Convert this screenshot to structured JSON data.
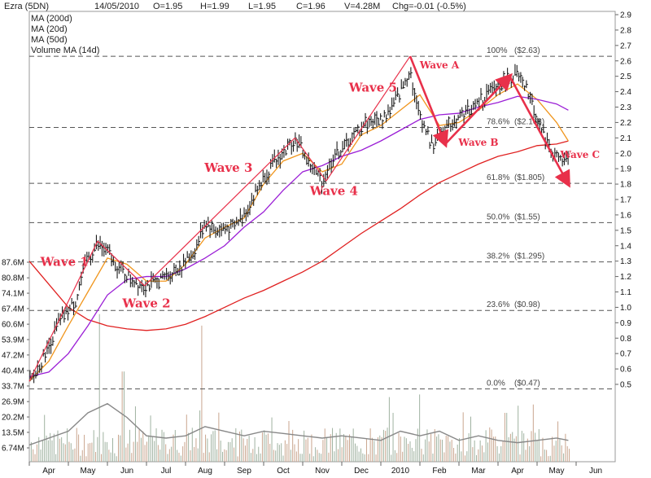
{
  "header": {
    "symbol": "Ezra (5DN)",
    "date": "14/05/2010",
    "open": "O=1.95",
    "high": "H=1.99",
    "low": "L=1.95",
    "close": "C=1.96",
    "volume": "V=4.28M",
    "change": "Chg=-0.01 (-0.5%)"
  },
  "legend": [
    {
      "label": "MA (200d)",
      "color": "#e02020"
    },
    {
      "label": "MA (20d)",
      "color": "#f0961e"
    },
    {
      "label": "MA (50d)",
      "color": "#9b1fd6"
    },
    {
      "label": "Volume MA (14d)",
      "color": "#777777"
    }
  ],
  "colors": {
    "price_bars": "#1a1a1a",
    "ma200": "#e02020",
    "ma20": "#f0961e",
    "ma50": "#9b1fd6",
    "volume_ma": "#888888",
    "volume_bars": "#c8b8a0",
    "annotation": "#e8304a",
    "fib_line": "#555555"
  },
  "chart_data": {
    "type": "line",
    "price_axis": {
      "ylim": [
        0.45,
        2.9
      ],
      "ticks": [
        "2.9",
        "2.8",
        "2.7",
        "2.6",
        "2.5",
        "2.4",
        "2.3",
        "2.2",
        "2.1",
        "2.0",
        "1.9",
        "1.8",
        "1.7",
        "1.6",
        "1.5",
        "1.4",
        "1.3",
        "1.2",
        "1.1",
        "1.0",
        "0.9",
        "0.8",
        "0.7",
        "0.6",
        "0.5"
      ],
      "tick_values": [
        2.9,
        2.8,
        2.7,
        2.6,
        2.5,
        2.4,
        2.3,
        2.2,
        2.1,
        2.0,
        1.9,
        1.8,
        1.7,
        1.6,
        1.5,
        1.4,
        1.3,
        1.2,
        1.1,
        1.0,
        0.9,
        0.8,
        0.7,
        0.6,
        0.5
      ]
    },
    "volume_axis": {
      "ticks": [
        "87.6M",
        "80.8M",
        "74.1M",
        "67.4M",
        "60.6M",
        "53.9M",
        "47.2M",
        "40.4M",
        "33.7M",
        "26.9M",
        "20.2M",
        "13.5M",
        "6.74M"
      ],
      "tick_values": [
        87.6,
        80.8,
        74.1,
        67.4,
        60.6,
        53.9,
        47.2,
        40.4,
        33.7,
        26.9,
        20.2,
        13.5,
        6.74
      ],
      "unit": "M"
    },
    "x_months": [
      {
        "label": "Apr",
        "t": 0.5
      },
      {
        "label": "May",
        "t": 1.5
      },
      {
        "label": "Jun",
        "t": 2.5
      },
      {
        "label": "Jul",
        "t": 3.5
      },
      {
        "label": "Aug",
        "t": 4.5
      },
      {
        "label": "Sep",
        "t": 5.5
      },
      {
        "label": "Oct",
        "t": 6.5
      },
      {
        "label": "Nov",
        "t": 7.5
      },
      {
        "label": "Dec",
        "t": 8.5
      },
      {
        "label": "2010",
        "t": 9.5
      },
      {
        "label": "Feb",
        "t": 10.5
      },
      {
        "label": "Mar",
        "t": 11.5
      },
      {
        "label": "Apr",
        "t": 12.5
      },
      {
        "label": "May",
        "t": 13.5
      },
      {
        "label": "Jun",
        "t": 14.5
      }
    ],
    "price_path": [
      [
        0.0,
        0.5
      ],
      [
        0.25,
        0.62
      ],
      [
        0.5,
        0.75
      ],
      [
        0.75,
        0.9
      ],
      [
        1.0,
        0.98
      ],
      [
        1.2,
        1.05
      ],
      [
        1.45,
        1.3
      ],
      [
        1.75,
        1.41
      ],
      [
        2.0,
        1.36
      ],
      [
        2.3,
        1.25
      ],
      [
        2.6,
        1.18
      ],
      [
        2.9,
        1.15
      ],
      [
        3.2,
        1.15
      ],
      [
        3.45,
        1.2
      ],
      [
        3.8,
        1.25
      ],
      [
        4.2,
        1.35
      ],
      [
        4.5,
        1.55
      ],
      [
        4.8,
        1.5
      ],
      [
        5.2,
        1.52
      ],
      [
        5.5,
        1.6
      ],
      [
        5.8,
        1.75
      ],
      [
        6.0,
        1.85
      ],
      [
        6.2,
        1.92
      ],
      [
        6.5,
        2.0
      ],
      [
        6.8,
        2.1
      ],
      [
        7.2,
        1.92
      ],
      [
        7.5,
        1.82
      ],
      [
        7.8,
        1.98
      ],
      [
        8.2,
        2.08
      ],
      [
        8.6,
        2.2
      ],
      [
        9.0,
        2.22
      ],
      [
        9.3,
        2.3
      ],
      [
        9.6,
        2.45
      ],
      [
        9.75,
        2.55
      ],
      [
        9.9,
        2.32
      ],
      [
        10.3,
        2.05
      ],
      [
        10.6,
        2.15
      ],
      [
        11.0,
        2.25
      ],
      [
        11.4,
        2.3
      ],
      [
        11.8,
        2.4
      ],
      [
        12.2,
        2.48
      ],
      [
        12.5,
        2.5
      ],
      [
        12.8,
        2.38
      ],
      [
        13.1,
        2.15
      ],
      [
        13.4,
        2.0
      ],
      [
        13.6,
        1.95
      ],
      [
        13.8,
        1.95
      ]
    ],
    "series": [
      {
        "name": "MA (200d)",
        "color": "#e02020",
        "points": [
          [
            0.0,
            1.3
          ],
          [
            0.5,
            1.15
          ],
          [
            1.0,
            1.0
          ],
          [
            1.5,
            0.92
          ],
          [
            2.0,
            0.88
          ],
          [
            2.5,
            0.86
          ],
          [
            3.0,
            0.85
          ],
          [
            3.5,
            0.86
          ],
          [
            4.0,
            0.89
          ],
          [
            4.5,
            0.94
          ],
          [
            5.0,
            1.0
          ],
          [
            5.5,
            1.06
          ],
          [
            6.0,
            1.11
          ],
          [
            6.5,
            1.17
          ],
          [
            7.0,
            1.23
          ],
          [
            7.5,
            1.3
          ],
          [
            8.0,
            1.39
          ],
          [
            8.5,
            1.48
          ],
          [
            9.0,
            1.56
          ],
          [
            9.5,
            1.64
          ],
          [
            10.0,
            1.73
          ],
          [
            10.5,
            1.81
          ],
          [
            11.0,
            1.87
          ],
          [
            11.5,
            1.93
          ],
          [
            12.0,
            1.98
          ],
          [
            12.5,
            2.01
          ],
          [
            13.0,
            2.05
          ],
          [
            13.5,
            2.06
          ],
          [
            13.8,
            2.08
          ]
        ]
      },
      {
        "name": "MA (20d)",
        "color": "#f0961e",
        "points": [
          [
            0.0,
            0.52
          ],
          [
            0.5,
            0.65
          ],
          [
            1.0,
            0.88
          ],
          [
            1.5,
            1.1
          ],
          [
            2.0,
            1.32
          ],
          [
            2.5,
            1.28
          ],
          [
            3.0,
            1.17
          ],
          [
            3.5,
            1.17
          ],
          [
            4.0,
            1.28
          ],
          [
            4.5,
            1.45
          ],
          [
            5.0,
            1.52
          ],
          [
            5.5,
            1.58
          ],
          [
            6.0,
            1.8
          ],
          [
            6.5,
            1.95
          ],
          [
            7.0,
            2.0
          ],
          [
            7.5,
            1.88
          ],
          [
            8.0,
            1.93
          ],
          [
            8.5,
            2.12
          ],
          [
            9.0,
            2.18
          ],
          [
            9.5,
            2.28
          ],
          [
            10.0,
            2.38
          ],
          [
            10.5,
            2.18
          ],
          [
            11.0,
            2.2
          ],
          [
            11.5,
            2.28
          ],
          [
            12.0,
            2.38
          ],
          [
            12.5,
            2.45
          ],
          [
            13.0,
            2.35
          ],
          [
            13.5,
            2.2
          ],
          [
            13.8,
            2.08
          ]
        ]
      },
      {
        "name": "MA (50d)",
        "color": "#9b1fd6",
        "points": [
          [
            0.0,
            0.55
          ],
          [
            0.5,
            0.58
          ],
          [
            1.0,
            0.7
          ],
          [
            1.5,
            0.88
          ],
          [
            2.0,
            1.08
          ],
          [
            2.5,
            1.18
          ],
          [
            3.0,
            1.2
          ],
          [
            3.5,
            1.2
          ],
          [
            4.0,
            1.25
          ],
          [
            4.5,
            1.32
          ],
          [
            5.0,
            1.4
          ],
          [
            5.5,
            1.52
          ],
          [
            6.0,
            1.62
          ],
          [
            6.5,
            1.76
          ],
          [
            7.0,
            1.88
          ],
          [
            7.5,
            1.92
          ],
          [
            8.0,
            1.98
          ],
          [
            8.5,
            2.02
          ],
          [
            9.0,
            2.08
          ],
          [
            9.5,
            2.15
          ],
          [
            10.0,
            2.22
          ],
          [
            10.5,
            2.25
          ],
          [
            11.0,
            2.26
          ],
          [
            11.5,
            2.3
          ],
          [
            12.0,
            2.33
          ],
          [
            12.5,
            2.37
          ],
          [
            13.0,
            2.35
          ],
          [
            13.5,
            2.32
          ],
          [
            13.8,
            2.28
          ]
        ]
      },
      {
        "name": "Volume MA (14d)",
        "color": "#888888",
        "points": [
          [
            0.0,
            8
          ],
          [
            1.0,
            14
          ],
          [
            1.5,
            22
          ],
          [
            2.0,
            26
          ],
          [
            2.5,
            20
          ],
          [
            3.0,
            12
          ],
          [
            3.5,
            11
          ],
          [
            4.0,
            12
          ],
          [
            4.5,
            16
          ],
          [
            5.0,
            14
          ],
          [
            5.5,
            12
          ],
          [
            6.0,
            14
          ],
          [
            6.5,
            13
          ],
          [
            7.0,
            12
          ],
          [
            7.5,
            11
          ],
          [
            8.0,
            12
          ],
          [
            8.5,
            11
          ],
          [
            9.0,
            10
          ],
          [
            9.5,
            14
          ],
          [
            10.0,
            12
          ],
          [
            10.5,
            14
          ],
          [
            11.0,
            10
          ],
          [
            11.5,
            12
          ],
          [
            12.0,
            10
          ],
          [
            12.5,
            9
          ],
          [
            13.0,
            10
          ],
          [
            13.5,
            11
          ],
          [
            13.8,
            10
          ]
        ]
      }
    ],
    "fibonacci": [
      {
        "label": "100%",
        "value_label": "($2.63)",
        "value": 2.63
      },
      {
        "label": "78.6%",
        "value_label": "($2.168)",
        "value": 2.168
      },
      {
        "label": "61.8%",
        "value_label": "($1.805)",
        "value": 1.805
      },
      {
        "label": "50.0%",
        "value_label": "($1.55)",
        "value": 1.55
      },
      {
        "label": "38.2%",
        "value_label": "($1.295)",
        "value": 1.295
      },
      {
        "label": "23.6%",
        "value_label": "($0.98)",
        "value": 0.98
      },
      {
        "label": "0.0%",
        "value_label": "($0.47)",
        "value": 0.47
      }
    ],
    "waves": [
      {
        "label": "Wave 1",
        "t": 0.9,
        "y": 1.27,
        "size": 15
      },
      {
        "label": "Wave 2",
        "t": 3.0,
        "y": 1.0,
        "size": 15
      },
      {
        "label": "Wave 3",
        "t": 5.1,
        "y": 1.88,
        "size": 15
      },
      {
        "label": "Wave 4",
        "t": 7.8,
        "y": 1.73,
        "size": 15
      },
      {
        "label": "Wave 5",
        "t": 8.8,
        "y": 2.4,
        "size": 15
      },
      {
        "label": "Wave A",
        "t": 10.5,
        "y": 2.55,
        "size": 12
      },
      {
        "label": "Wave B",
        "t": 11.5,
        "y": 2.05,
        "size": 12
      },
      {
        "label": "Wave C",
        "t": 14.1,
        "y": 1.97,
        "size": 12
      }
    ],
    "wave_lines": [
      [
        [
          0.0,
          0.52
        ],
        [
          1.75,
          1.43
        ]
      ],
      [
        [
          1.75,
          1.43
        ],
        [
          2.95,
          1.14
        ]
      ],
      [
        [
          2.95,
          1.14
        ],
        [
          6.8,
          2.1
        ]
      ],
      [
        [
          6.8,
          2.1
        ],
        [
          7.6,
          1.82
        ]
      ],
      [
        [
          7.6,
          1.82
        ],
        [
          9.75,
          2.63
        ]
      ]
    ],
    "arrows": [
      [
        [
          9.75,
          2.63
        ],
        [
          10.65,
          2.06
        ]
      ],
      [
        [
          10.65,
          2.06
        ],
        [
          12.3,
          2.5
        ]
      ],
      [
        [
          12.3,
          2.5
        ],
        [
          13.8,
          1.8
        ]
      ]
    ],
    "volume_bar_stats": {
      "typical": 8,
      "spikes": [
        [
          1.8,
          65
        ],
        [
          2.4,
          40
        ],
        [
          4.4,
          60
        ],
        [
          6.2,
          20
        ],
        [
          9.3,
          22
        ],
        [
          10.0,
          30
        ],
        [
          12.2,
          22
        ]
      ]
    }
  }
}
